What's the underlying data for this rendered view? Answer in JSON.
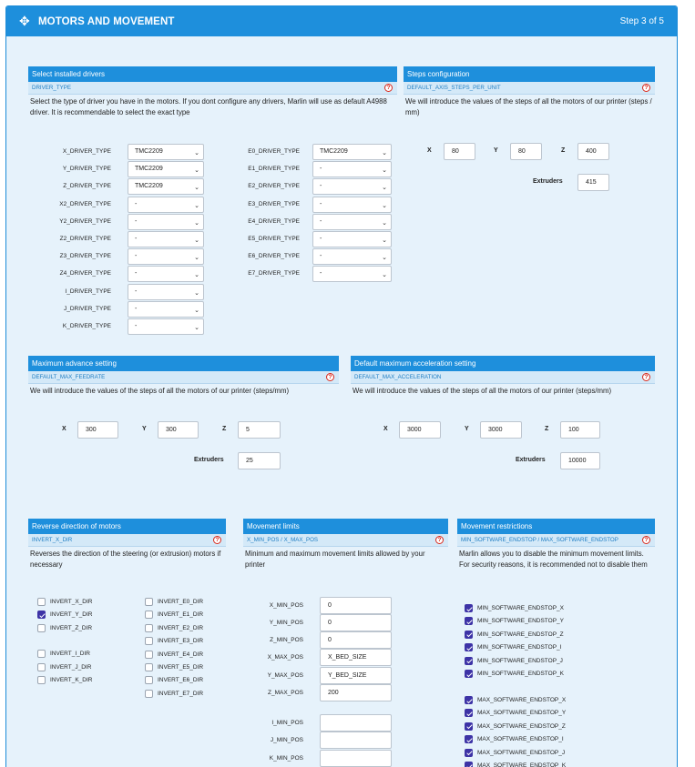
{
  "header": {
    "icon": "move-arrows-icon",
    "title": "MOTORS AND MOVEMENT",
    "step": "Step 3 of 5"
  },
  "drivers": {
    "title": "Select installed drivers",
    "sub": "DRIVER_TYPE",
    "desc": "Select the type of driver you have in the motors. If you dont configure any drivers, Marlin will use as default A4988 driver. It is recommendable to select the exact type",
    "left": [
      {
        "label": "X_DRIVER_TYPE",
        "value": "TMC2209"
      },
      {
        "label": "Y_DRIVER_TYPE",
        "value": "TMC2209"
      },
      {
        "label": "Z_DRIVER_TYPE",
        "value": "TMC2209"
      },
      {
        "label": "X2_DRIVER_TYPE",
        "value": "-"
      },
      {
        "label": "Y2_DRIVER_TYPE",
        "value": "-"
      },
      {
        "label": "Z2_DRIVER_TYPE",
        "value": "-"
      },
      {
        "label": "Z3_DRIVER_TYPE",
        "value": "-"
      },
      {
        "label": "Z4_DRIVER_TYPE",
        "value": "-"
      },
      {
        "label": "I_DRIVER_TYPE",
        "value": "-"
      },
      {
        "label": "J_DRIVER_TYPE",
        "value": "-"
      },
      {
        "label": "K_DRIVER_TYPE",
        "value": "-"
      }
    ],
    "right": [
      {
        "label": "E0_DRIVER_TYPE",
        "value": "TMC2209"
      },
      {
        "label": "E1_DRIVER_TYPE",
        "value": "-"
      },
      {
        "label": "E2_DRIVER_TYPE",
        "value": "-"
      },
      {
        "label": "E3_DRIVER_TYPE",
        "value": "-"
      },
      {
        "label": "E4_DRIVER_TYPE",
        "value": "-"
      },
      {
        "label": "E5_DRIVER_TYPE",
        "value": "-"
      },
      {
        "label": "E6_DRIVER_TYPE",
        "value": "-"
      },
      {
        "label": "E7_DRIVER_TYPE",
        "value": "-"
      }
    ]
  },
  "steps": {
    "title": "Steps configuration",
    "sub": "DEFAULT_AXIS_STEPS_PER_UNIT",
    "desc": "We will introduce the values of the steps of all the motors of our printer (steps / mm)",
    "x_label": "X",
    "x": "80",
    "y_label": "Y",
    "y": "80",
    "z_label": "Z",
    "z": "400",
    "extruders_label": "Extruders",
    "extruders": "415"
  },
  "feedrate": {
    "title": "Maximum advance setting",
    "sub": "DEFAULT_MAX_FEEDRATE",
    "desc": "We will introduce the values of the steps of all the motors of our printer (steps/mm)",
    "x_label": "X",
    "x": "300",
    "y_label": "Y",
    "y": "300",
    "z_label": "Z",
    "z": "5",
    "extruders_label": "Extruders",
    "extruders": "25"
  },
  "accel": {
    "title": "Default maximum acceleration setting",
    "sub": "DEFAULT_MAX_ACCELERATION",
    "desc": "We will introduce the values of the steps of all the motors of our printer (steps/mm)",
    "x_label": "X",
    "x": "3000",
    "y_label": "Y",
    "y": "3000",
    "z_label": "Z",
    "z": "100",
    "extruders_label": "Extruders",
    "extruders": "10000"
  },
  "reverse": {
    "title": "Reverse direction of motors",
    "sub": "INVERT_X_DIR",
    "desc": "Reverses the direction of the steering (or extrusion) motors if necessary",
    "left": [
      {
        "label": "INVERT_X_DIR",
        "checked": false
      },
      {
        "label": "INVERT_Y_DIR",
        "checked": true
      },
      {
        "label": "INVERT_Z_DIR",
        "checked": false
      },
      {
        "label": "INVERT_I_DIR",
        "checked": false
      },
      {
        "label": "INVERT_J_DIR",
        "checked": false
      },
      {
        "label": "INVERT_K_DIR",
        "checked": false
      }
    ],
    "right": [
      {
        "label": "INVERT_E0_DIR",
        "checked": false
      },
      {
        "label": "INVERT_E1_DIR",
        "checked": false
      },
      {
        "label": "INVERT_E2_DIR",
        "checked": false
      },
      {
        "label": "INVERT_E3_DIR",
        "checked": false
      },
      {
        "label": "INVERT_E4_DIR",
        "checked": false
      },
      {
        "label": "INVERT_E5_DIR",
        "checked": false
      },
      {
        "label": "INVERT_E6_DIR",
        "checked": false
      },
      {
        "label": "INVERT_E7_DIR",
        "checked": false
      }
    ]
  },
  "limits": {
    "title": "Movement limits",
    "sub": "X_MIN_POS / X_MAX_POS",
    "desc": "Minimum and maximum movement limits allowed by your printer",
    "rows": [
      {
        "label": "X_MIN_POS",
        "value": "0"
      },
      {
        "label": "Y_MIN_POS",
        "value": "0"
      },
      {
        "label": "Z_MIN_POS",
        "value": "0"
      },
      {
        "label": "X_MAX_POS",
        "value": "X_BED_SIZE"
      },
      {
        "label": "Y_MAX_POS",
        "value": "Y_BED_SIZE"
      },
      {
        "label": "Z_MAX_POS",
        "value": "200"
      },
      {
        "label": "I_MIN_POS",
        "value": ""
      },
      {
        "label": "J_MIN_POS",
        "value": ""
      },
      {
        "label": "K_MIN_POS",
        "value": ""
      }
    ]
  },
  "restrictions": {
    "title": "Movement restrictions",
    "sub": "MIN_SOFTWARE_ENDSTOP / MAX_SOFTWARE_ENDSTOP",
    "desc": "Marlin allows you to disable the minimum movement limits. For security reasons, it is recommended not to disable them",
    "min": [
      {
        "label": "MIN_SOFTWARE_ENDSTOP_X",
        "checked": true
      },
      {
        "label": "MIN_SOFTWARE_ENDSTOP_Y",
        "checked": true
      },
      {
        "label": "MIN_SOFTWARE_ENDSTOP_Z",
        "checked": true
      },
      {
        "label": "MIN_SOFTWARE_ENDSTOP_I",
        "checked": true
      },
      {
        "label": "MIN_SOFTWARE_ENDSTOP_J",
        "checked": true
      },
      {
        "label": "MIN_SOFTWARE_ENDSTOP_K",
        "checked": true
      }
    ],
    "max": [
      {
        "label": "MAX_SOFTWARE_ENDSTOP_X",
        "checked": true
      },
      {
        "label": "MAX_SOFTWARE_ENDSTOP_Y",
        "checked": true
      },
      {
        "label": "MAX_SOFTWARE_ENDSTOP_Z",
        "checked": true
      },
      {
        "label": "MAX_SOFTWARE_ENDSTOP_I",
        "checked": true
      },
      {
        "label": "MAX_SOFTWARE_ENDSTOP_J",
        "checked": true
      },
      {
        "label": "MAX_SOFTWARE_ENDSTOP_K",
        "checked": true
      }
    ]
  },
  "help_icon": "question-circle-icon",
  "colors": {
    "accent": "#1e8fdc",
    "panel": "#e6f2fb",
    "checkbox": "#3d33a6",
    "help": "#d9281a"
  }
}
